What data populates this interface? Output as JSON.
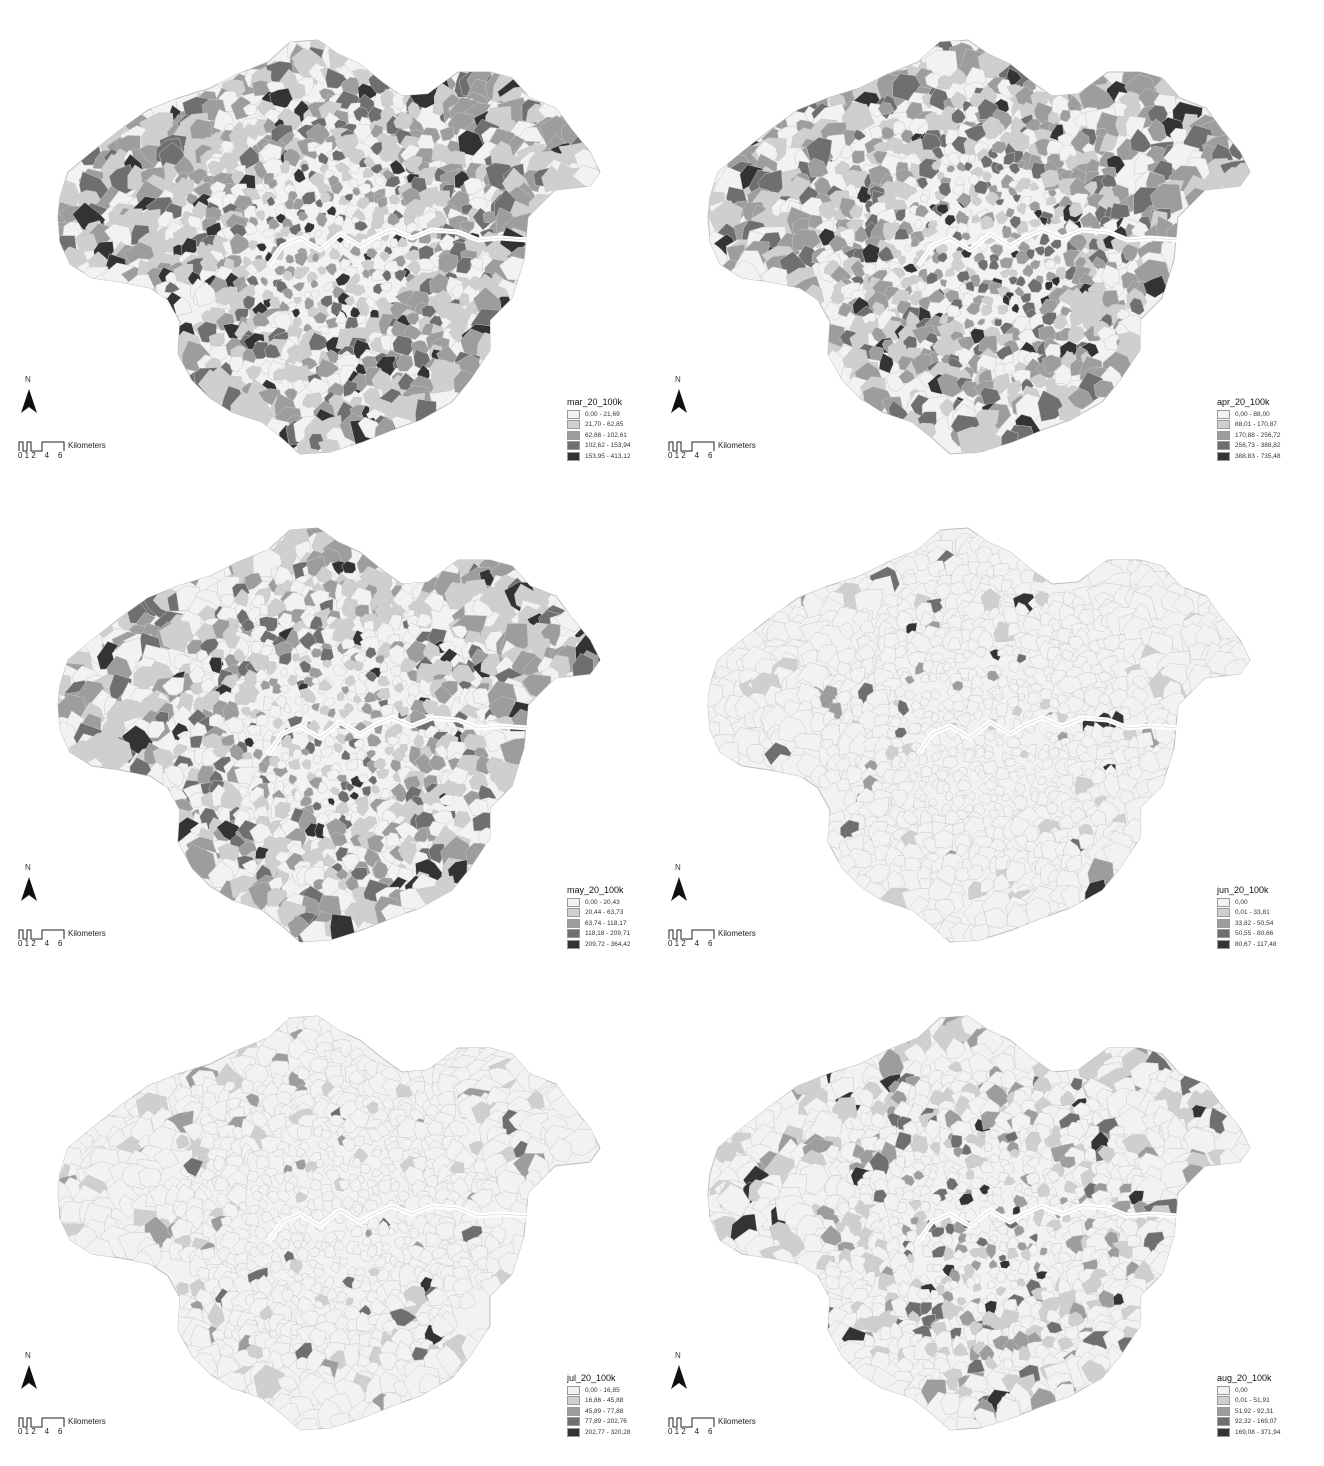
{
  "scale_bar": {
    "unit": "Kilometers",
    "ticks": "0 1 2    4    6"
  },
  "north_label": "N",
  "classes_colors": [
    "#f2f2f2",
    "#cfcfcf",
    "#9d9d9d",
    "#6f6f6f",
    "#333333"
  ],
  "maps": [
    {
      "id": "mar",
      "title": "mar_20_100k",
      "ranges": [
        "0,00 - 21,69",
        "21,70 - 62,85",
        "62,86 - 102,61",
        "102,62 - 153,94",
        "153,95 - 413,12"
      ],
      "class_shares": [
        0.22,
        0.3,
        0.26,
        0.15,
        0.07
      ]
    },
    {
      "id": "apr",
      "title": "apr_20_100k",
      "ranges": [
        "0,00 - 88,00",
        "88,01 - 170,87",
        "170,88 - 256,72",
        "256,73 - 388,82",
        "388,83 - 735,48"
      ],
      "class_shares": [
        0.2,
        0.28,
        0.3,
        0.16,
        0.06
      ]
    },
    {
      "id": "may",
      "title": "may_20_100k",
      "ranges": [
        "0,00 - 20,43",
        "20,44 - 63,73",
        "63,74 - 118,17",
        "118,18 - 209,71",
        "209,72 - 364,42"
      ],
      "class_shares": [
        0.38,
        0.3,
        0.18,
        0.1,
        0.04
      ]
    },
    {
      "id": "jun",
      "title": "jun_20_100k",
      "ranges": [
        "0,00",
        "0,01 - 33,81",
        "33,82 - 50,54",
        "50,55 - 80,66",
        "80,67 - 117,48"
      ],
      "class_shares": [
        0.93,
        0.04,
        0.015,
        0.01,
        0.005
      ]
    },
    {
      "id": "jul",
      "title": "jul_20_100k",
      "ranges": [
        "0,00 - 16,85",
        "16,86 - 45,88",
        "45,89 - 77,88",
        "77,89 - 202,76",
        "202,77 - 320,28"
      ],
      "class_shares": [
        0.88,
        0.07,
        0.03,
        0.015,
        0.005
      ]
    },
    {
      "id": "aug",
      "title": "aug_20_100k",
      "ranges": [
        "0,00",
        "0,01 - 51,91",
        "51,92 - 92,31",
        "92,32 - 169,07",
        "169,08 - 371,94"
      ],
      "class_shares": [
        0.62,
        0.18,
        0.11,
        0.06,
        0.03
      ]
    }
  ]
}
